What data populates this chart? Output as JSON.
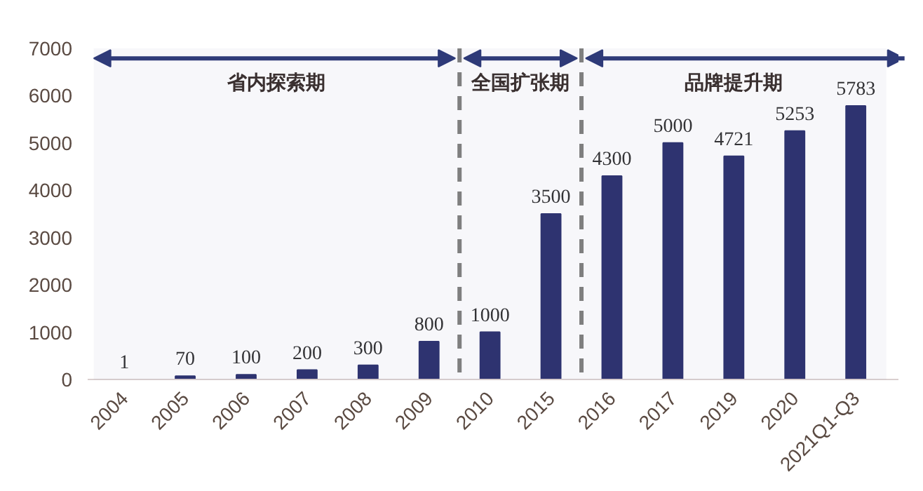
{
  "chart_data": {
    "type": "bar",
    "categories": [
      "2004",
      "2005",
      "2006",
      "2007",
      "2008",
      "2009",
      "2010",
      "2015",
      "2016",
      "2017",
      "2019",
      "2020",
      "2021Q1-Q3"
    ],
    "values": [
      1,
      70,
      100,
      200,
      300,
      800,
      1000,
      3500,
      4300,
      5000,
      4721,
      5253,
      5783
    ],
    "color": "#2e3470",
    "data_labels": true,
    "ylim": [
      0,
      7000
    ],
    "yticks": [
      0,
      1000,
      2000,
      3000,
      4000,
      5000,
      6000,
      7000
    ],
    "grid": false,
    "bands": [
      {
        "axis": "x",
        "from": "2004",
        "to": "2009",
        "label": "省内探索期",
        "color": "#2e3a78"
      },
      {
        "axis": "x",
        "from": "2010",
        "to": "2015",
        "label": "全国扩张期",
        "color": "#2e3a78"
      },
      {
        "axis": "x",
        "from": "2016",
        "to": "2021Q1-Q3",
        "label": "品牌提升期",
        "color": "#2e3a78"
      }
    ]
  }
}
